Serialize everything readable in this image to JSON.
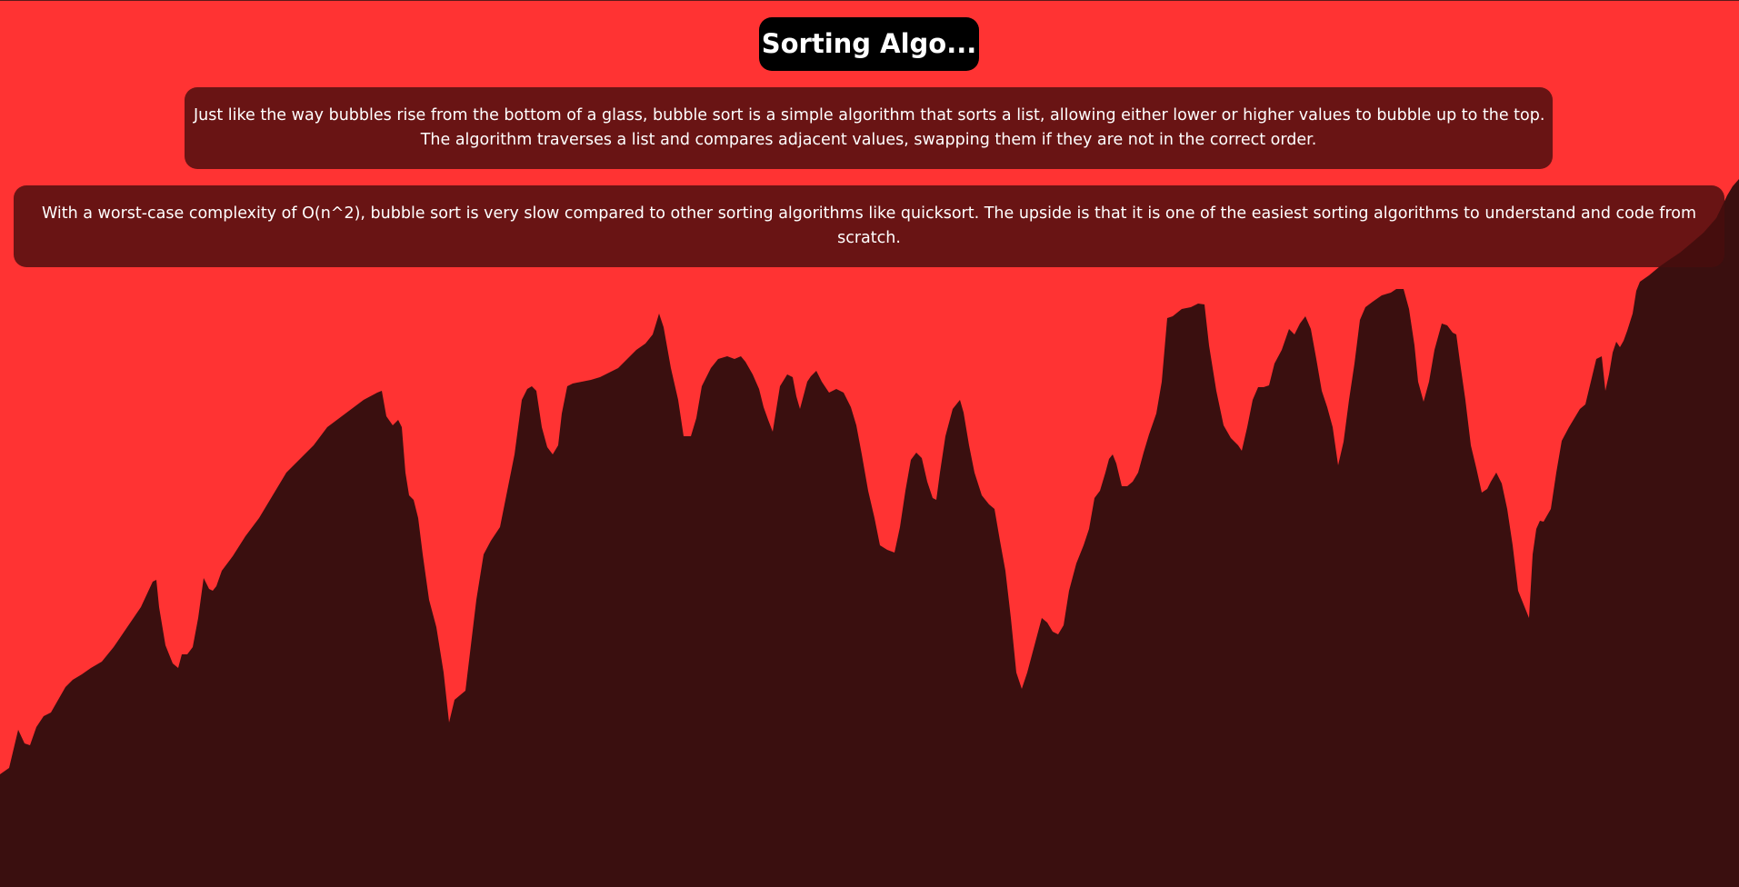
{
  "app": {
    "title": "Sorting Algo..."
  },
  "description": {
    "paragraph_1_line_1": "Just like the way bubbles rise from the bottom of a glass, bubble sort is a simple algorithm that sorts a list, allowing either lower or higher values to bubble up to the top.",
    "paragraph_1_line_2": "The algorithm traverses a list and compares adjacent values, swapping them if they are not in the correct order.",
    "paragraph_2": "With a worst-case complexity of O(n^2), bubble sort is very slow compared to other sorting algorithms like quicksort. The upside is that it is one of the easiest sorting algorithms to understand and code from scratch."
  },
  "visualization": {
    "algorithm": "bubble sort",
    "state": "in progress",
    "colors": {
      "background": "#ff3333",
      "bars": "#3a0f0f",
      "card": "#4a0e0e",
      "title_pill": "#000000",
      "text": "#ffffff"
    }
  }
}
